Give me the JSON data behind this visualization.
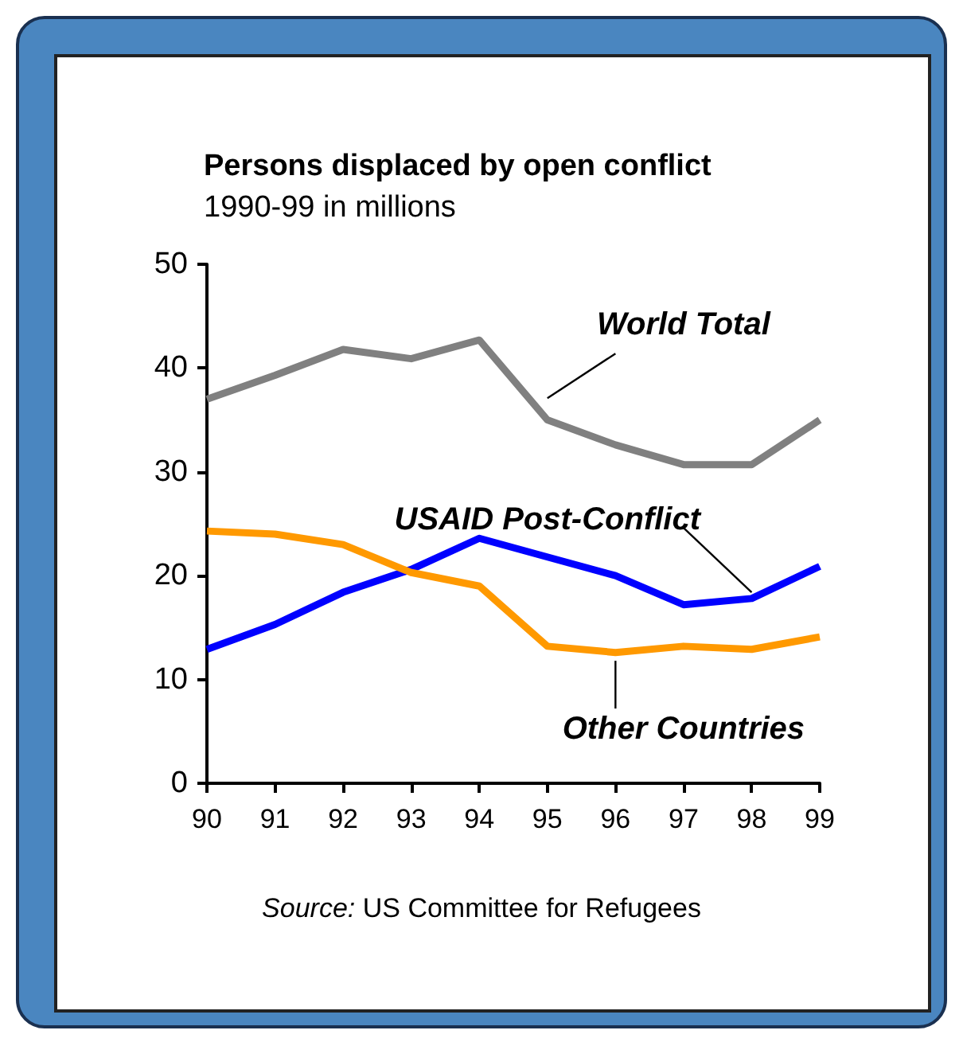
{
  "chart_data": {
    "type": "line",
    "title": "Persons displaced by open conflict",
    "subtitle": "1990-99 in millions",
    "categories": [
      "90",
      "91",
      "92",
      "93",
      "94",
      "95",
      "96",
      "97",
      "98",
      "99"
    ],
    "series": [
      {
        "name": "World Total",
        "color": "#808080",
        "values": [
          37,
          39.3,
          41.8,
          40.9,
          42.7,
          35,
          32.6,
          30.7,
          30.7,
          35
        ]
      },
      {
        "name": "USAID Post-Conflict",
        "color": "#0000ff",
        "values": [
          12.9,
          15.3,
          18.4,
          20.6,
          23.6,
          21.8,
          20,
          17.2,
          17.8,
          20.9
        ]
      },
      {
        "name": "Other Countries",
        "color": "#ff9900",
        "values": [
          24.3,
          24,
          23,
          20.3,
          19,
          13.2,
          12.6,
          13.2,
          12.9,
          14.1
        ]
      }
    ],
    "ylim": [
      0,
      50
    ],
    "yticks": [
      0,
      10,
      20,
      30,
      40,
      50
    ],
    "grid": false,
    "legend": false,
    "marker": "none",
    "line_style": "solid",
    "annotations": [
      "Source: US Committee for Refugees"
    ]
  }
}
